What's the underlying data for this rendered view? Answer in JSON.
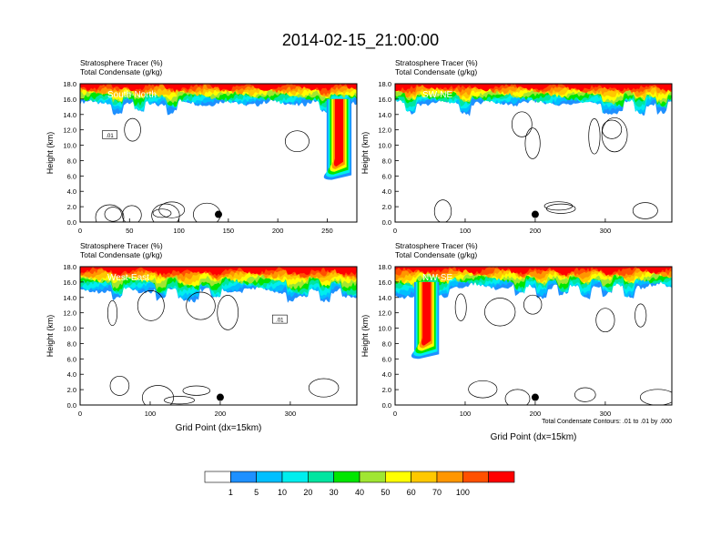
{
  "title": "2014-02-15_21:00:00",
  "chart_data": [
    {
      "type": "heatmap",
      "label": "South-North",
      "header_line1": "Stratosphere Tracer   (%)",
      "header_line2": "Total Condensate   (g/kg)",
      "ylabel": "Height (km)",
      "xlabel": "",
      "xlim": [
        0,
        280
      ],
      "ylim": [
        0,
        18
      ],
      "xticks": [
        "0",
        "50",
        "100",
        "150",
        "200",
        "250"
      ],
      "yticks": [
        "0.0",
        "2.0",
        "4.0",
        "6.0",
        "8.0",
        "10.0",
        "12.0",
        "14.0",
        "16.0",
        "18.0"
      ],
      "marker_x": 140,
      "marker_y": 1,
      "contour_label": ".01",
      "tracer_top_base_km": 15.5,
      "plume": {
        "x": 262,
        "y_bottom": 5.5,
        "y_top": 16.0,
        "feature": "tall plume descending along right edge"
      }
    },
    {
      "type": "heatmap",
      "label": "SW-NE",
      "header_line1": "Stratosphere Tracer   (%)",
      "header_line2": "Total Condensate   (g/kg)",
      "ylabel": "Height (km)",
      "xlabel": "",
      "xlim": [
        0,
        395
      ],
      "ylim": [
        0,
        18
      ],
      "xticks": [
        "0",
        "100",
        "200",
        "300"
      ],
      "yticks": [
        "0.0",
        "2.0",
        "4.0",
        "6.0",
        "8.0",
        "10.0",
        "12.0",
        "14.0",
        "16.0",
        "18.0"
      ],
      "marker_x": 200,
      "marker_y": 1,
      "tracer_top_base_km": 15.5
    },
    {
      "type": "heatmap",
      "label": "West-East",
      "header_line1": "Stratosphere Tracer   (%)",
      "header_line2": "Total Condensate   (g/kg)",
      "ylabel": "Height (km)",
      "xlabel": "Grid Point (dx=15km)",
      "xlim": [
        0,
        395
      ],
      "ylim": [
        0,
        18
      ],
      "xticks": [
        "0",
        "100",
        "200",
        "300"
      ],
      "yticks": [
        "0.0",
        "2.0",
        "4.0",
        "6.0",
        "8.0",
        "10.0",
        "12.0",
        "14.0",
        "16.0",
        "18.0"
      ],
      "marker_x": 200,
      "marker_y": 1,
      "contour_label": ".01",
      "tracer_top_base_km": 15.0
    },
    {
      "type": "heatmap",
      "label": "NW-SE",
      "header_line1": "Stratosphere Tracer   (%)",
      "header_line2": "Total Condensate   (g/kg)",
      "ylabel": "Height (km)",
      "xlabel": "Grid Point (dx=15km)",
      "xlim": [
        0,
        395
      ],
      "ylim": [
        0,
        18
      ],
      "xticks": [
        "0",
        "100",
        "200",
        "300"
      ],
      "yticks": [
        "0.0",
        "2.0",
        "4.0",
        "6.0",
        "8.0",
        "10.0",
        "12.0",
        "14.0",
        "16.0",
        "18.0"
      ],
      "marker_x": 200,
      "marker_y": 1,
      "tracer_top_base_km": 15.5,
      "plume": {
        "x": 45,
        "y_bottom": 6.0,
        "y_top": 16.0,
        "feature": "tall plume descending near left edge"
      },
      "footnote": "Total Condensate Contours: .01 to .01 by .000"
    }
  ],
  "colorbar": {
    "levels": [
      "1",
      "5",
      "10",
      "20",
      "30",
      "40",
      "50",
      "60",
      "70",
      "100"
    ],
    "colors": [
      "#ffffff",
      "#1e90ff",
      "#00bfff",
      "#00eeee",
      "#00e5a0",
      "#00e600",
      "#a0e632",
      "#ffff00",
      "#ffc800",
      "#ff9600",
      "#ff5000",
      "#ff0000"
    ]
  }
}
